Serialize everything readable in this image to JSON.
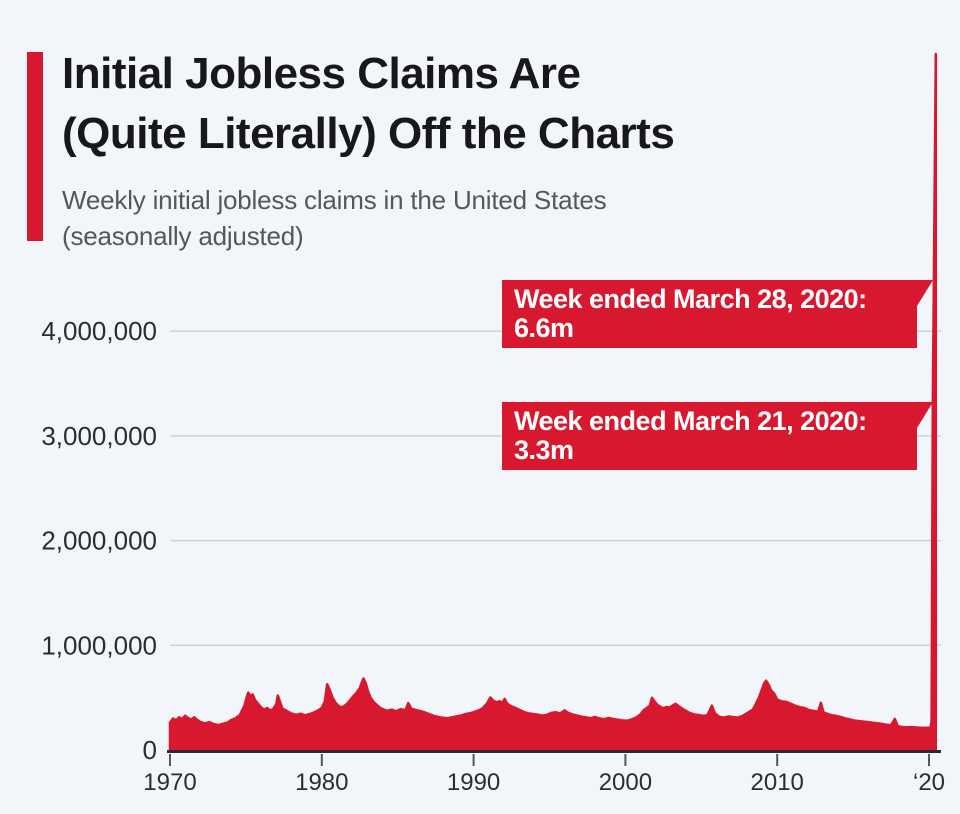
{
  "header": {
    "title_line1": "Initial Jobless Claims Are",
    "title_line2": "(Quite Literally) Off the Charts",
    "subtitle_line1": "Weekly initial jobless claims in the United States",
    "subtitle_line2": "(seasonally adjusted)",
    "accent_color": "#d7182f"
  },
  "annotations": [
    {
      "line1": "Week ended March 28, 2020:",
      "line2": "6.6m"
    },
    {
      "line1": "Week ended March 21, 2020:",
      "line2": "3.3m"
    }
  ],
  "colors": {
    "background": "#f2f5f9",
    "series_red": "#d7182f",
    "gridline": "#ccd2d9",
    "baseline": "#2b2b2e",
    "tick": "#55555a",
    "axis_text": "#2d2d30"
  },
  "chart_data": {
    "type": "area",
    "title": "Initial Jobless Claims Are (Quite Literally) Off the Charts",
    "subtitle": "Weekly initial jobless claims in the United States (seasonally adjusted)",
    "xlabel": "",
    "ylabel": "",
    "x_range": [
      1970,
      2020.5
    ],
    "ylim": [
      0,
      4400000
    ],
    "grid": "horizontal gridlines at 1M steps",
    "legend": "none",
    "note": "2020 spike (6.6m) extends far above the 4,000,000 axis maximum, off the top of the chart",
    "x_ticks": [
      {
        "label": "1970",
        "year": 1970
      },
      {
        "label": "1980",
        "year": 1980
      },
      {
        "label": "1990",
        "year": 1990
      },
      {
        "label": "2000",
        "year": 2000
      },
      {
        "label": "2010",
        "year": 2010
      },
      {
        "label": "‘20",
        "year": 2020
      }
    ],
    "y_ticks": [
      {
        "label": "0",
        "value": 0
      },
      {
        "label": "1,000,000",
        "value": 1000000
      },
      {
        "label": "2,000,000",
        "value": 2000000
      },
      {
        "label": "3,000,000",
        "value": 3000000
      },
      {
        "label": "4,000,000",
        "value": 4000000
      }
    ],
    "callouts": [
      {
        "text": "Week ended March 28, 2020: 6.6m",
        "value": 6648000
      },
      {
        "text": "Week ended March 21, 2020: 3.3m",
        "value": 3307000
      }
    ],
    "series": [
      {
        "name": "Weekly initial jobless claims, seasonally adjusted",
        "color": "#d7182f",
        "points": [
          [
            1970.0,
            262000
          ],
          [
            1970.2,
            301000
          ],
          [
            1970.4,
            284000
          ],
          [
            1970.6,
            312000
          ],
          [
            1970.8,
            296000
          ],
          [
            1971.0,
            328000
          ],
          [
            1971.2,
            304000
          ],
          [
            1971.4,
            291000
          ],
          [
            1971.6,
            312000
          ],
          [
            1971.8,
            287000
          ],
          [
            1972.0,
            268000
          ],
          [
            1972.3,
            254000
          ],
          [
            1972.6,
            266000
          ],
          [
            1972.9,
            246000
          ],
          [
            1973.2,
            238000
          ],
          [
            1973.5,
            251000
          ],
          [
            1973.8,
            262000
          ],
          [
            1974.0,
            284000
          ],
          [
            1974.3,
            302000
          ],
          [
            1974.6,
            333000
          ],
          [
            1974.9,
            422000
          ],
          [
            1975.05,
            505000
          ],
          [
            1975.15,
            548000
          ],
          [
            1975.3,
            514000
          ],
          [
            1975.45,
            530000
          ],
          [
            1975.6,
            478000
          ],
          [
            1975.8,
            442000
          ],
          [
            1976.0,
            408000
          ],
          [
            1976.2,
            386000
          ],
          [
            1976.4,
            401000
          ],
          [
            1976.6,
            376000
          ],
          [
            1976.8,
            392000
          ],
          [
            1977.0,
            438000
          ],
          [
            1977.1,
            521000
          ],
          [
            1977.25,
            458000
          ],
          [
            1977.4,
            396000
          ],
          [
            1977.6,
            381000
          ],
          [
            1977.8,
            364000
          ],
          [
            1978.0,
            349000
          ],
          [
            1978.3,
            336000
          ],
          [
            1978.6,
            347000
          ],
          [
            1978.9,
            331000
          ],
          [
            1979.2,
            344000
          ],
          [
            1979.5,
            359000
          ],
          [
            1979.8,
            382000
          ],
          [
            1980.0,
            403000
          ],
          [
            1980.2,
            462000
          ],
          [
            1980.35,
            628000
          ],
          [
            1980.5,
            583000
          ],
          [
            1980.7,
            504000
          ],
          [
            1980.9,
            451000
          ],
          [
            1981.1,
            421000
          ],
          [
            1981.3,
            406000
          ],
          [
            1981.5,
            422000
          ],
          [
            1981.7,
            447000
          ],
          [
            1981.9,
            482000
          ],
          [
            1982.1,
            518000
          ],
          [
            1982.3,
            548000
          ],
          [
            1982.5,
            592000
          ],
          [
            1982.65,
            651000
          ],
          [
            1982.75,
            683000
          ],
          [
            1982.9,
            637000
          ],
          [
            1983.05,
            558000
          ],
          [
            1983.2,
            503000
          ],
          [
            1983.4,
            462000
          ],
          [
            1983.6,
            434000
          ],
          [
            1983.8,
            408000
          ],
          [
            1984.0,
            391000
          ],
          [
            1984.3,
            374000
          ],
          [
            1984.6,
            386000
          ],
          [
            1984.9,
            369000
          ],
          [
            1985.2,
            391000
          ],
          [
            1985.5,
            379000
          ],
          [
            1985.7,
            448000
          ],
          [
            1985.9,
            394000
          ],
          [
            1986.2,
            381000
          ],
          [
            1986.5,
            372000
          ],
          [
            1986.8,
            359000
          ],
          [
            1987.1,
            341000
          ],
          [
            1987.4,
            326000
          ],
          [
            1987.7,
            314000
          ],
          [
            1988.0,
            308000
          ],
          [
            1988.3,
            304000
          ],
          [
            1988.6,
            313000
          ],
          [
            1988.9,
            321000
          ],
          [
            1989.2,
            331000
          ],
          [
            1989.5,
            344000
          ],
          [
            1989.8,
            352000
          ],
          [
            1990.0,
            361000
          ],
          [
            1990.3,
            376000
          ],
          [
            1990.6,
            399000
          ],
          [
            1990.9,
            448000
          ],
          [
            1991.1,
            501000
          ],
          [
            1991.3,
            472000
          ],
          [
            1991.5,
            454000
          ],
          [
            1991.7,
            466000
          ],
          [
            1991.9,
            452000
          ],
          [
            1992.05,
            488000
          ],
          [
            1992.2,
            446000
          ],
          [
            1992.4,
            424000
          ],
          [
            1992.6,
            411000
          ],
          [
            1992.8,
            399000
          ],
          [
            1993.0,
            386000
          ],
          [
            1993.3,
            364000
          ],
          [
            1993.6,
            351000
          ],
          [
            1993.9,
            344000
          ],
          [
            1994.2,
            338000
          ],
          [
            1994.5,
            329000
          ],
          [
            1994.8,
            334000
          ],
          [
            1995.1,
            353000
          ],
          [
            1995.4,
            361000
          ],
          [
            1995.7,
            349000
          ],
          [
            1996.0,
            379000
          ],
          [
            1996.2,
            356000
          ],
          [
            1996.5,
            341000
          ],
          [
            1996.8,
            329000
          ],
          [
            1997.1,
            319000
          ],
          [
            1997.4,
            311000
          ],
          [
            1997.7,
            304000
          ],
          [
            1998.0,
            316000
          ],
          [
            1998.3,
            301000
          ],
          [
            1998.6,
            294000
          ],
          [
            1998.9,
            306000
          ],
          [
            1999.2,
            296000
          ],
          [
            1999.5,
            289000
          ],
          [
            1999.8,
            283000
          ],
          [
            2000.1,
            279000
          ],
          [
            2000.4,
            291000
          ],
          [
            2000.7,
            309000
          ],
          [
            2001.0,
            341000
          ],
          [
            2001.2,
            379000
          ],
          [
            2001.4,
            401000
          ],
          [
            2001.6,
            421000
          ],
          [
            2001.75,
            499000
          ],
          [
            2001.9,
            468000
          ],
          [
            2002.1,
            432000
          ],
          [
            2002.3,
            414000
          ],
          [
            2002.5,
            399000
          ],
          [
            2002.7,
            411000
          ],
          [
            2002.9,
            404000
          ],
          [
            2003.1,
            424000
          ],
          [
            2003.3,
            441000
          ],
          [
            2003.5,
            419000
          ],
          [
            2003.7,
            399000
          ],
          [
            2003.9,
            381000
          ],
          [
            2004.2,
            356000
          ],
          [
            2004.5,
            341000
          ],
          [
            2004.8,
            334000
          ],
          [
            2005.1,
            326000
          ],
          [
            2005.4,
            331000
          ],
          [
            2005.7,
            424000
          ],
          [
            2005.9,
            349000
          ],
          [
            2006.2,
            316000
          ],
          [
            2006.5,
            309000
          ],
          [
            2006.8,
            321000
          ],
          [
            2007.1,
            314000
          ],
          [
            2007.4,
            309000
          ],
          [
            2007.7,
            324000
          ],
          [
            2008.0,
            351000
          ],
          [
            2008.2,
            369000
          ],
          [
            2008.4,
            386000
          ],
          [
            2008.6,
            441000
          ],
          [
            2008.8,
            502000
          ],
          [
            2009.0,
            581000
          ],
          [
            2009.15,
            639000
          ],
          [
            2009.27,
            662000
          ],
          [
            2009.45,
            618000
          ],
          [
            2009.6,
            569000
          ],
          [
            2009.8,
            539000
          ],
          [
            2010.0,
            481000
          ],
          [
            2010.3,
            464000
          ],
          [
            2010.6,
            459000
          ],
          [
            2010.9,
            441000
          ],
          [
            2011.2,
            422000
          ],
          [
            2011.5,
            409000
          ],
          [
            2011.8,
            401000
          ],
          [
            2012.1,
            381000
          ],
          [
            2012.4,
            374000
          ],
          [
            2012.7,
            366000
          ],
          [
            2012.88,
            451000
          ],
          [
            2013.05,
            359000
          ],
          [
            2013.3,
            346000
          ],
          [
            2013.6,
            331000
          ],
          [
            2013.9,
            326000
          ],
          [
            2014.2,
            314000
          ],
          [
            2014.5,
            301000
          ],
          [
            2014.8,
            291000
          ],
          [
            2015.1,
            281000
          ],
          [
            2015.4,
            276000
          ],
          [
            2015.7,
            271000
          ],
          [
            2016.0,
            266000
          ],
          [
            2016.3,
            261000
          ],
          [
            2016.6,
            256000
          ],
          [
            2016.9,
            249000
          ],
          [
            2017.2,
            241000
          ],
          [
            2017.5,
            236000
          ],
          [
            2017.75,
            297000
          ],
          [
            2017.95,
            226000
          ],
          [
            2018.2,
            221000
          ],
          [
            2018.5,
            216000
          ],
          [
            2018.8,
            219000
          ],
          [
            2019.1,
            216000
          ],
          [
            2019.4,
            213000
          ],
          [
            2019.7,
            211000
          ],
          [
            2019.95,
            213000
          ],
          [
            2020.1,
            211000
          ],
          [
            2020.17,
            282000
          ],
          [
            2020.25,
            3307000
          ],
          [
            2020.45,
            6648000
          ]
        ]
      }
    ]
  }
}
